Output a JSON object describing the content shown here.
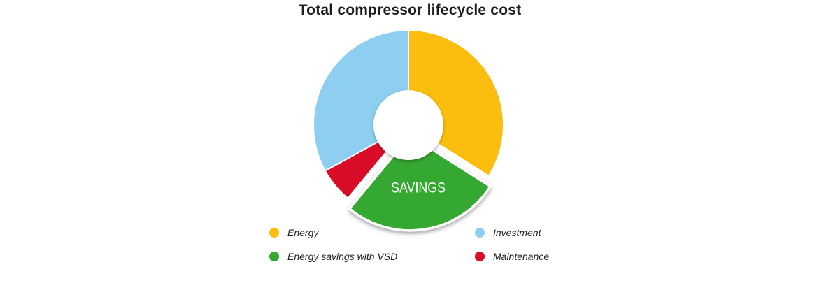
{
  "chart_data": {
    "type": "pie",
    "subtype": "donut",
    "title": "Total compressor lifecycle cost",
    "note": "no numeric labels shown in image; slice percentages estimated from arc angles",
    "start_angle_deg": 0,
    "direction": "clockwise",
    "legend_position": "bottom",
    "background_color": "#ffffff",
    "series": [
      {
        "name": "Energy",
        "value": 34,
        "color": "#FBBE0E",
        "exploded": false,
        "slice_label": ""
      },
      {
        "name": "Energy savings with VSD",
        "value": 27,
        "color": "#35A833",
        "exploded": true,
        "slice_label": "SAVINGS"
      },
      {
        "name": "Maintenance",
        "value": 6,
        "color": "#D90D27",
        "exploded": false,
        "slice_label": ""
      },
      {
        "name": "Investment",
        "value": 33,
        "color": "#8DCEF1",
        "exploded": false,
        "slice_label": ""
      }
    ],
    "slice_label_color": "#ffffff",
    "hole_color": "#ffffff"
  },
  "legend": {
    "columns": [
      [
        {
          "label": "Energy",
          "color": "#FBBE0E"
        },
        {
          "label": "Energy savings with VSD",
          "color": "#35A833"
        }
      ],
      [
        {
          "label": "Investment",
          "color": "#8DCEF1"
        },
        {
          "label": "Maintenance",
          "color": "#D90D27"
        }
      ]
    ]
  }
}
